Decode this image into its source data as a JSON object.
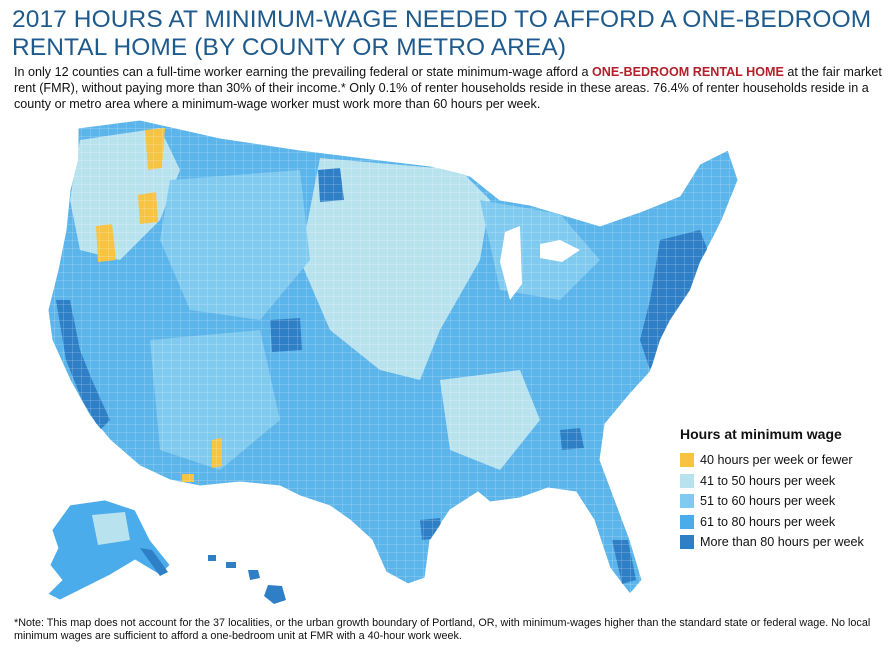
{
  "title": "2017 HOURS AT MINIMUM-WAGE NEEDED TO AFFORD A ONE-BEDROOM RENTAL HOME (BY COUNTY OR METRO AREA)",
  "intro": {
    "before": "In only 12 counties can a full-time worker earning the prevailing federal or state minimum-wage afford a ",
    "highlight": "ONE-BEDROOM RENTAL HOME",
    "after": " at the fair market rent (FMR), without paying more than 30% of their income.* Only 0.1% of renter households reside in these areas. 76.4% of renter households reside in a county or metro area where a minimum-wage worker must work more than 60 hours per week."
  },
  "legend": {
    "title": "Hours at minimum wage",
    "items": [
      {
        "label": "40 hours per week or fewer",
        "color": "#f7c342"
      },
      {
        "label": "41 to 50 hours per week",
        "color": "#b9e2ef"
      },
      {
        "label": "51 to 60 hours per week",
        "color": "#80c9ef"
      },
      {
        "label": "61 to 80 hours per week",
        "color": "#4aaceb"
      },
      {
        "label": "More than 80 hours per week",
        "color": "#2f7fc6"
      }
    ]
  },
  "footnote": "*Note: This map does not account for the 37 localities, or the urban growth boundary of Portland, OR, with minimum-wages higher than the standard state or federal wage. No local minimum wages are sufficient to afford a one-bedroom unit at FMR with a 40-hour work week."
}
